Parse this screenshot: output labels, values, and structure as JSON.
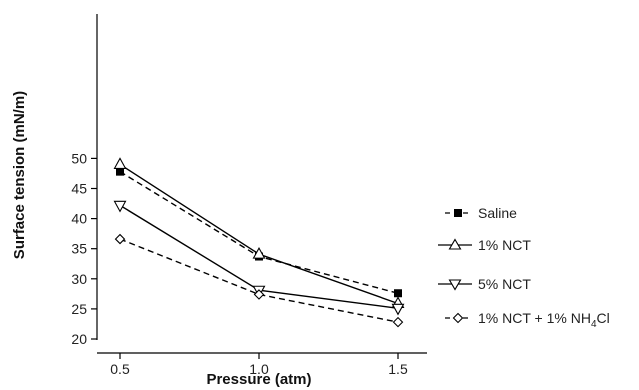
{
  "chart_data": {
    "type": "line",
    "title": "",
    "xlabel": "Pressure (atm)",
    "ylabel": "Surface tension (mN/m)",
    "x": [
      0.5,
      1.0,
      1.5
    ],
    "x_tick_labels": [
      "0.5",
      "1.0",
      "1.5"
    ],
    "y_ticks": [
      20,
      25,
      30,
      35,
      40,
      45,
      50
    ],
    "ylim": [
      20,
      52
    ],
    "grid": false,
    "legend_position": "right",
    "series": [
      {
        "name": "Saline",
        "values": [
          47.8,
          33.7,
          27.6
        ],
        "line_style": "dashed",
        "marker": "filled-square",
        "color": "#000000"
      },
      {
        "name": "1% NCT",
        "values": [
          49.0,
          34.1,
          25.9
        ],
        "line_style": "solid",
        "marker": "open-triangle-up",
        "color": "#000000"
      },
      {
        "name": "5% NCT",
        "values": [
          42.2,
          28.1,
          25.1
        ],
        "line_style": "solid",
        "marker": "open-triangle-down",
        "color": "#000000"
      },
      {
        "name": "1% NCT + 1% NH4Cl",
        "values": [
          36.6,
          27.4,
          22.8
        ],
        "line_style": "dashed",
        "marker": "open-diamond",
        "color": "#000000"
      }
    ],
    "legend_labels": {
      "saline": "Saline",
      "nct1": "1% NCT",
      "nct5": "5% NCT",
      "combo_prefix": "1% NCT + 1% NH",
      "combo_sub": "4",
      "combo_suffix": "Cl"
    }
  }
}
